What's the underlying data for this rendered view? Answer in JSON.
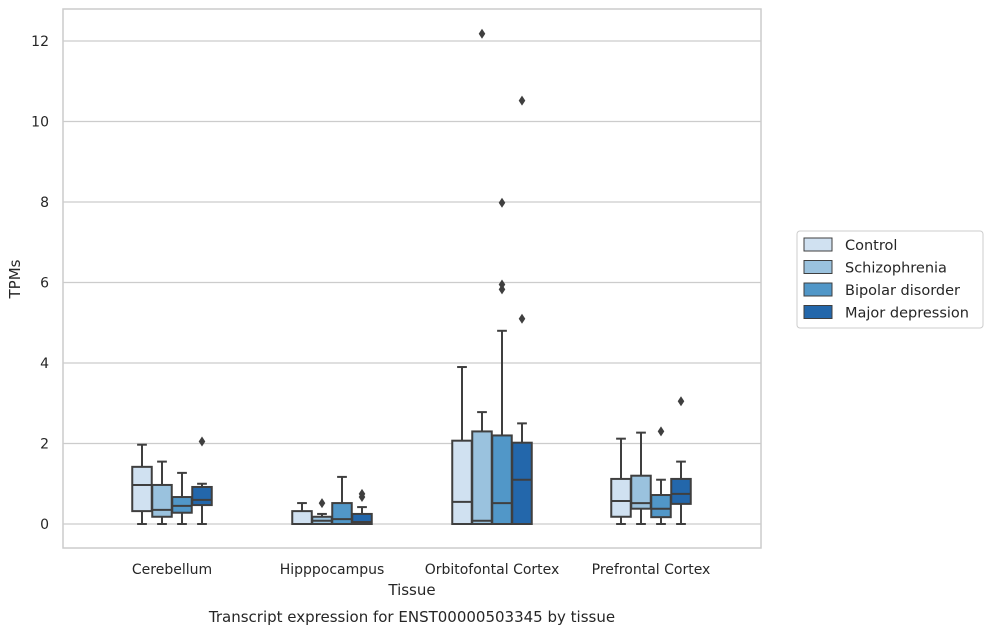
{
  "chart_data": {
    "type": "box",
    "title": "Transcript expression for ENST00000503345 by tissue",
    "xlabel": "Tissue",
    "ylabel": "TPMs",
    "ylim": [
      -0.6,
      12.8
    ],
    "yticks": [
      0,
      2,
      4,
      6,
      8,
      10,
      12
    ],
    "grid": "horizontal",
    "legend_position": "right",
    "categories": [
      "Cerebellum",
      "Hipppocampus",
      "Orbitofontal Cortex",
      "Prefrontal Cortex"
    ],
    "series": [
      {
        "name": "Control",
        "color": "#d0e1f1",
        "boxes": [
          {
            "min": 0.0,
            "q1": 0.32,
            "median": 0.97,
            "q3": 1.42,
            "max": 1.97,
            "outliers": []
          },
          {
            "min": 0.0,
            "q1": 0.0,
            "median": 0.0,
            "q3": 0.32,
            "max": 0.52,
            "outliers": []
          },
          {
            "min": 0.0,
            "q1": 0.0,
            "median": 0.55,
            "q3": 2.07,
            "max": 3.9,
            "outliers": []
          },
          {
            "min": 0.0,
            "q1": 0.18,
            "median": 0.57,
            "q3": 1.12,
            "max": 2.12,
            "outliers": []
          }
        ]
      },
      {
        "name": "Schizophrenia",
        "color": "#9ac2de",
        "boxes": [
          {
            "min": 0.0,
            "q1": 0.18,
            "median": 0.35,
            "q3": 0.97,
            "max": 1.55,
            "outliers": []
          },
          {
            "min": 0.0,
            "q1": 0.0,
            "median": 0.08,
            "q3": 0.18,
            "max": 0.25,
            "outliers": [
              0.52
            ]
          },
          {
            "min": 0.0,
            "q1": 0.0,
            "median": 0.08,
            "q3": 2.3,
            "max": 2.78,
            "outliers": [
              12.18
            ]
          },
          {
            "min": 0.0,
            "q1": 0.38,
            "median": 0.52,
            "q3": 1.2,
            "max": 2.27,
            "outliers": []
          }
        ]
      },
      {
        "name": "Bipolar disorder",
        "color": "#5197c8",
        "boxes": [
          {
            "min": 0.0,
            "q1": 0.28,
            "median": 0.45,
            "q3": 0.67,
            "max": 1.27,
            "outliers": []
          },
          {
            "min": 0.0,
            "q1": 0.0,
            "median": 0.12,
            "q3": 0.52,
            "max": 1.17,
            "outliers": []
          },
          {
            "min": 0.0,
            "q1": 0.0,
            "median": 0.52,
            "q3": 2.2,
            "max": 4.8,
            "outliers": [
              5.83,
              5.95,
              7.98
            ]
          },
          {
            "min": 0.0,
            "q1": 0.17,
            "median": 0.38,
            "q3": 0.72,
            "max": 1.1,
            "outliers": [
              2.3
            ]
          }
        ]
      },
      {
        "name": "Major depression",
        "color": "#2367ab",
        "boxes": [
          {
            "min": 0.0,
            "q1": 0.47,
            "median": 0.6,
            "q3": 0.92,
            "max": 1.0,
            "outliers": [
              2.05
            ]
          },
          {
            "min": 0.0,
            "q1": 0.0,
            "median": 0.05,
            "q3": 0.25,
            "max": 0.42,
            "outliers": [
              0.67,
              0.75
            ]
          },
          {
            "min": 0.0,
            "q1": 0.0,
            "median": 1.1,
            "q3": 2.02,
            "max": 2.5,
            "outliers": [
              5.1,
              10.52
            ]
          },
          {
            "min": 0.0,
            "q1": 0.5,
            "median": 0.75,
            "q3": 1.12,
            "max": 1.55,
            "outliers": [
              3.05
            ]
          }
        ]
      }
    ]
  }
}
